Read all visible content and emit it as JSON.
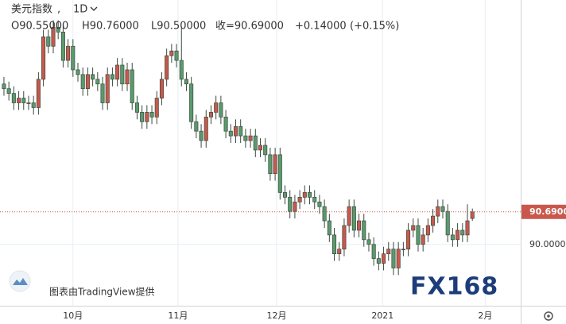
{
  "chart_data": {
    "type": "candlestick",
    "title": "美元指数",
    "interval": "1D",
    "ohlc_labels": [
      "O90.55000",
      "H90.76000",
      "L90.50000",
      "收=90.69000"
    ],
    "change": "+0.14000",
    "change_pct": "(+0.15%)",
    "attribution": "图表由TradingView提供",
    "watermark": "FX168",
    "up_color": "#c9584c",
    "down_color": "#5a9a6c",
    "x": [
      0,
      1,
      2,
      3,
      4,
      5,
      6,
      7,
      8,
      9,
      10,
      11,
      12,
      13,
      14,
      15,
      16,
      17,
      18,
      19,
      20,
      21,
      22,
      23,
      24,
      25,
      26,
      27,
      28,
      29,
      30,
      31,
      32,
      33,
      34,
      35,
      36,
      37,
      38,
      39,
      40,
      41,
      42,
      43,
      44,
      45,
      46,
      47,
      48,
      49,
      50,
      51,
      52,
      53,
      54,
      55,
      56,
      57,
      58,
      59,
      60,
      61,
      62,
      63,
      64,
      65,
      66,
      67,
      68,
      69,
      70,
      71,
      72,
      73,
      74,
      75,
      76,
      77,
      78,
      79,
      80,
      81,
      82,
      83,
      84,
      85,
      86,
      87,
      88,
      89,
      90,
      91,
      92,
      93,
      94,
      95
    ],
    "open": [
      93.4,
      93.3,
      93.2,
      93.0,
      93.1,
      93.0,
      93.0,
      92.9,
      93.5,
      94.4,
      94.2,
      94.6,
      94.5,
      93.9,
      94.2,
      93.7,
      93.6,
      93.3,
      93.6,
      93.5,
      93.4,
      93.0,
      93.6,
      93.5,
      93.8,
      93.4,
      93.7,
      93.0,
      92.8,
      92.6,
      92.8,
      92.7,
      93.1,
      93.5,
      94.0,
      94.1,
      93.9,
      93.5,
      93.4,
      92.6,
      92.4,
      92.2,
      92.7,
      92.8,
      93.0,
      92.7,
      92.4,
      92.3,
      92.5,
      92.3,
      92.2,
      92.3,
      92.0,
      92.1,
      91.9,
      91.5,
      91.9,
      91.1,
      91.0,
      90.7,
      90.9,
      91.0,
      91.1,
      91.0,
      90.9,
      90.8,
      90.5,
      90.2,
      89.8,
      89.9,
      90.4,
      90.8,
      90.3,
      90.5,
      90.1,
      90.0,
      89.7,
      89.6,
      89.8,
      89.9,
      89.5,
      89.9,
      89.9,
      90.3,
      90.4,
      90.0,
      90.2,
      90.4,
      90.6,
      90.8,
      90.7,
      90.2,
      90.1,
      90.3,
      90.2,
      90.55
    ],
    "high": [
      93.55,
      93.45,
      93.35,
      93.25,
      93.25,
      93.15,
      93.15,
      93.65,
      94.55,
      94.55,
      94.75,
      94.75,
      94.65,
      94.35,
      94.35,
      93.85,
      93.75,
      93.75,
      93.75,
      93.65,
      93.55,
      93.75,
      93.75,
      93.95,
      93.95,
      93.85,
      93.85,
      93.15,
      92.95,
      92.95,
      92.95,
      93.25,
      93.65,
      94.15,
      94.25,
      94.25,
      94.6,
      93.65,
      93.55,
      92.75,
      92.55,
      92.85,
      92.95,
      93.15,
      93.15,
      92.85,
      92.55,
      92.65,
      92.65,
      92.45,
      92.45,
      92.45,
      92.25,
      92.25,
      92.05,
      92.05,
      92.05,
      91.25,
      91.15,
      91.05,
      91.15,
      91.25,
      91.25,
      91.15,
      91.05,
      90.95,
      90.65,
      90.35,
      90.05,
      90.55,
      90.95,
      90.95,
      90.65,
      90.65,
      90.25,
      90.15,
      89.85,
      89.95,
      90.05,
      90.05,
      90.05,
      90.05,
      90.45,
      90.55,
      90.55,
      90.35,
      90.55,
      90.75,
      90.95,
      90.95,
      90.85,
      90.35,
      90.45,
      90.45,
      90.85,
      90.76
    ],
    "low": [
      93.15,
      93.05,
      92.85,
      92.85,
      92.85,
      92.85,
      92.75,
      92.75,
      93.35,
      94.05,
      94.05,
      94.35,
      93.75,
      93.75,
      93.55,
      93.45,
      93.15,
      93.15,
      93.35,
      93.25,
      92.85,
      92.85,
      93.35,
      93.35,
      93.25,
      93.25,
      92.85,
      92.65,
      92.45,
      92.45,
      92.55,
      92.55,
      92.95,
      93.35,
      93.85,
      93.75,
      93.35,
      93.25,
      92.45,
      92.25,
      92.05,
      92.05,
      92.55,
      92.65,
      92.55,
      92.25,
      92.15,
      92.15,
      92.15,
      92.05,
      92.05,
      91.85,
      91.85,
      91.75,
      91.35,
      91.35,
      90.95,
      90.85,
      90.55,
      90.55,
      90.75,
      90.85,
      90.85,
      90.75,
      90.65,
      90.35,
      90.05,
      89.65,
      89.65,
      89.75,
      90.25,
      90.15,
      90.15,
      89.95,
      89.85,
      89.55,
      89.45,
      89.45,
      89.65,
      89.35,
      89.35,
      89.75,
      89.75,
      90.15,
      89.85,
      89.85,
      90.05,
      90.25,
      90.45,
      90.55,
      90.05,
      89.95,
      89.95,
      90.05,
      90.05,
      90.5
    ],
    "close": [
      93.3,
      93.2,
      93.0,
      93.1,
      93.0,
      93.0,
      92.9,
      93.5,
      94.4,
      94.2,
      94.6,
      94.5,
      93.9,
      94.2,
      93.7,
      93.6,
      93.3,
      93.6,
      93.5,
      93.4,
      93.0,
      93.6,
      93.5,
      93.8,
      93.4,
      93.7,
      93.0,
      92.8,
      92.6,
      92.8,
      92.7,
      93.1,
      93.5,
      94.0,
      94.1,
      93.9,
      93.5,
      93.4,
      92.6,
      92.4,
      92.2,
      92.7,
      92.8,
      93.0,
      92.7,
      92.4,
      92.3,
      92.5,
      92.3,
      92.2,
      92.3,
      92.0,
      92.1,
      91.9,
      91.5,
      91.9,
      91.1,
      91.0,
      90.7,
      90.9,
      91.0,
      91.1,
      91.0,
      90.9,
      90.8,
      90.5,
      90.2,
      89.8,
      89.9,
      90.4,
      90.8,
      90.3,
      90.5,
      90.1,
      90.0,
      89.7,
      89.6,
      89.8,
      89.9,
      89.5,
      89.9,
      89.9,
      90.3,
      90.4,
      90.0,
      90.2,
      90.4,
      90.6,
      90.8,
      90.7,
      90.2,
      90.1,
      90.3,
      90.2,
      90.5,
      90.69
    ],
    "xlim": [
      -0.8,
      104.8
    ],
    "xticks": [
      {
        "value": 14,
        "label": "10月"
      },
      {
        "value": 35.3,
        "label": "11月"
      },
      {
        "value": 55.3,
        "label": "12月"
      },
      {
        "value": 76.8,
        "label": "2021"
      },
      {
        "value": 97.6,
        "label": "2月"
      }
    ],
    "ylim": [
      88.7,
      95.18
    ],
    "yticks": [
      {
        "value": 90,
        "label": "90.00000"
      }
    ],
    "last_price": {
      "value": 90.69,
      "label": "90.69000"
    },
    "grid": true
  }
}
